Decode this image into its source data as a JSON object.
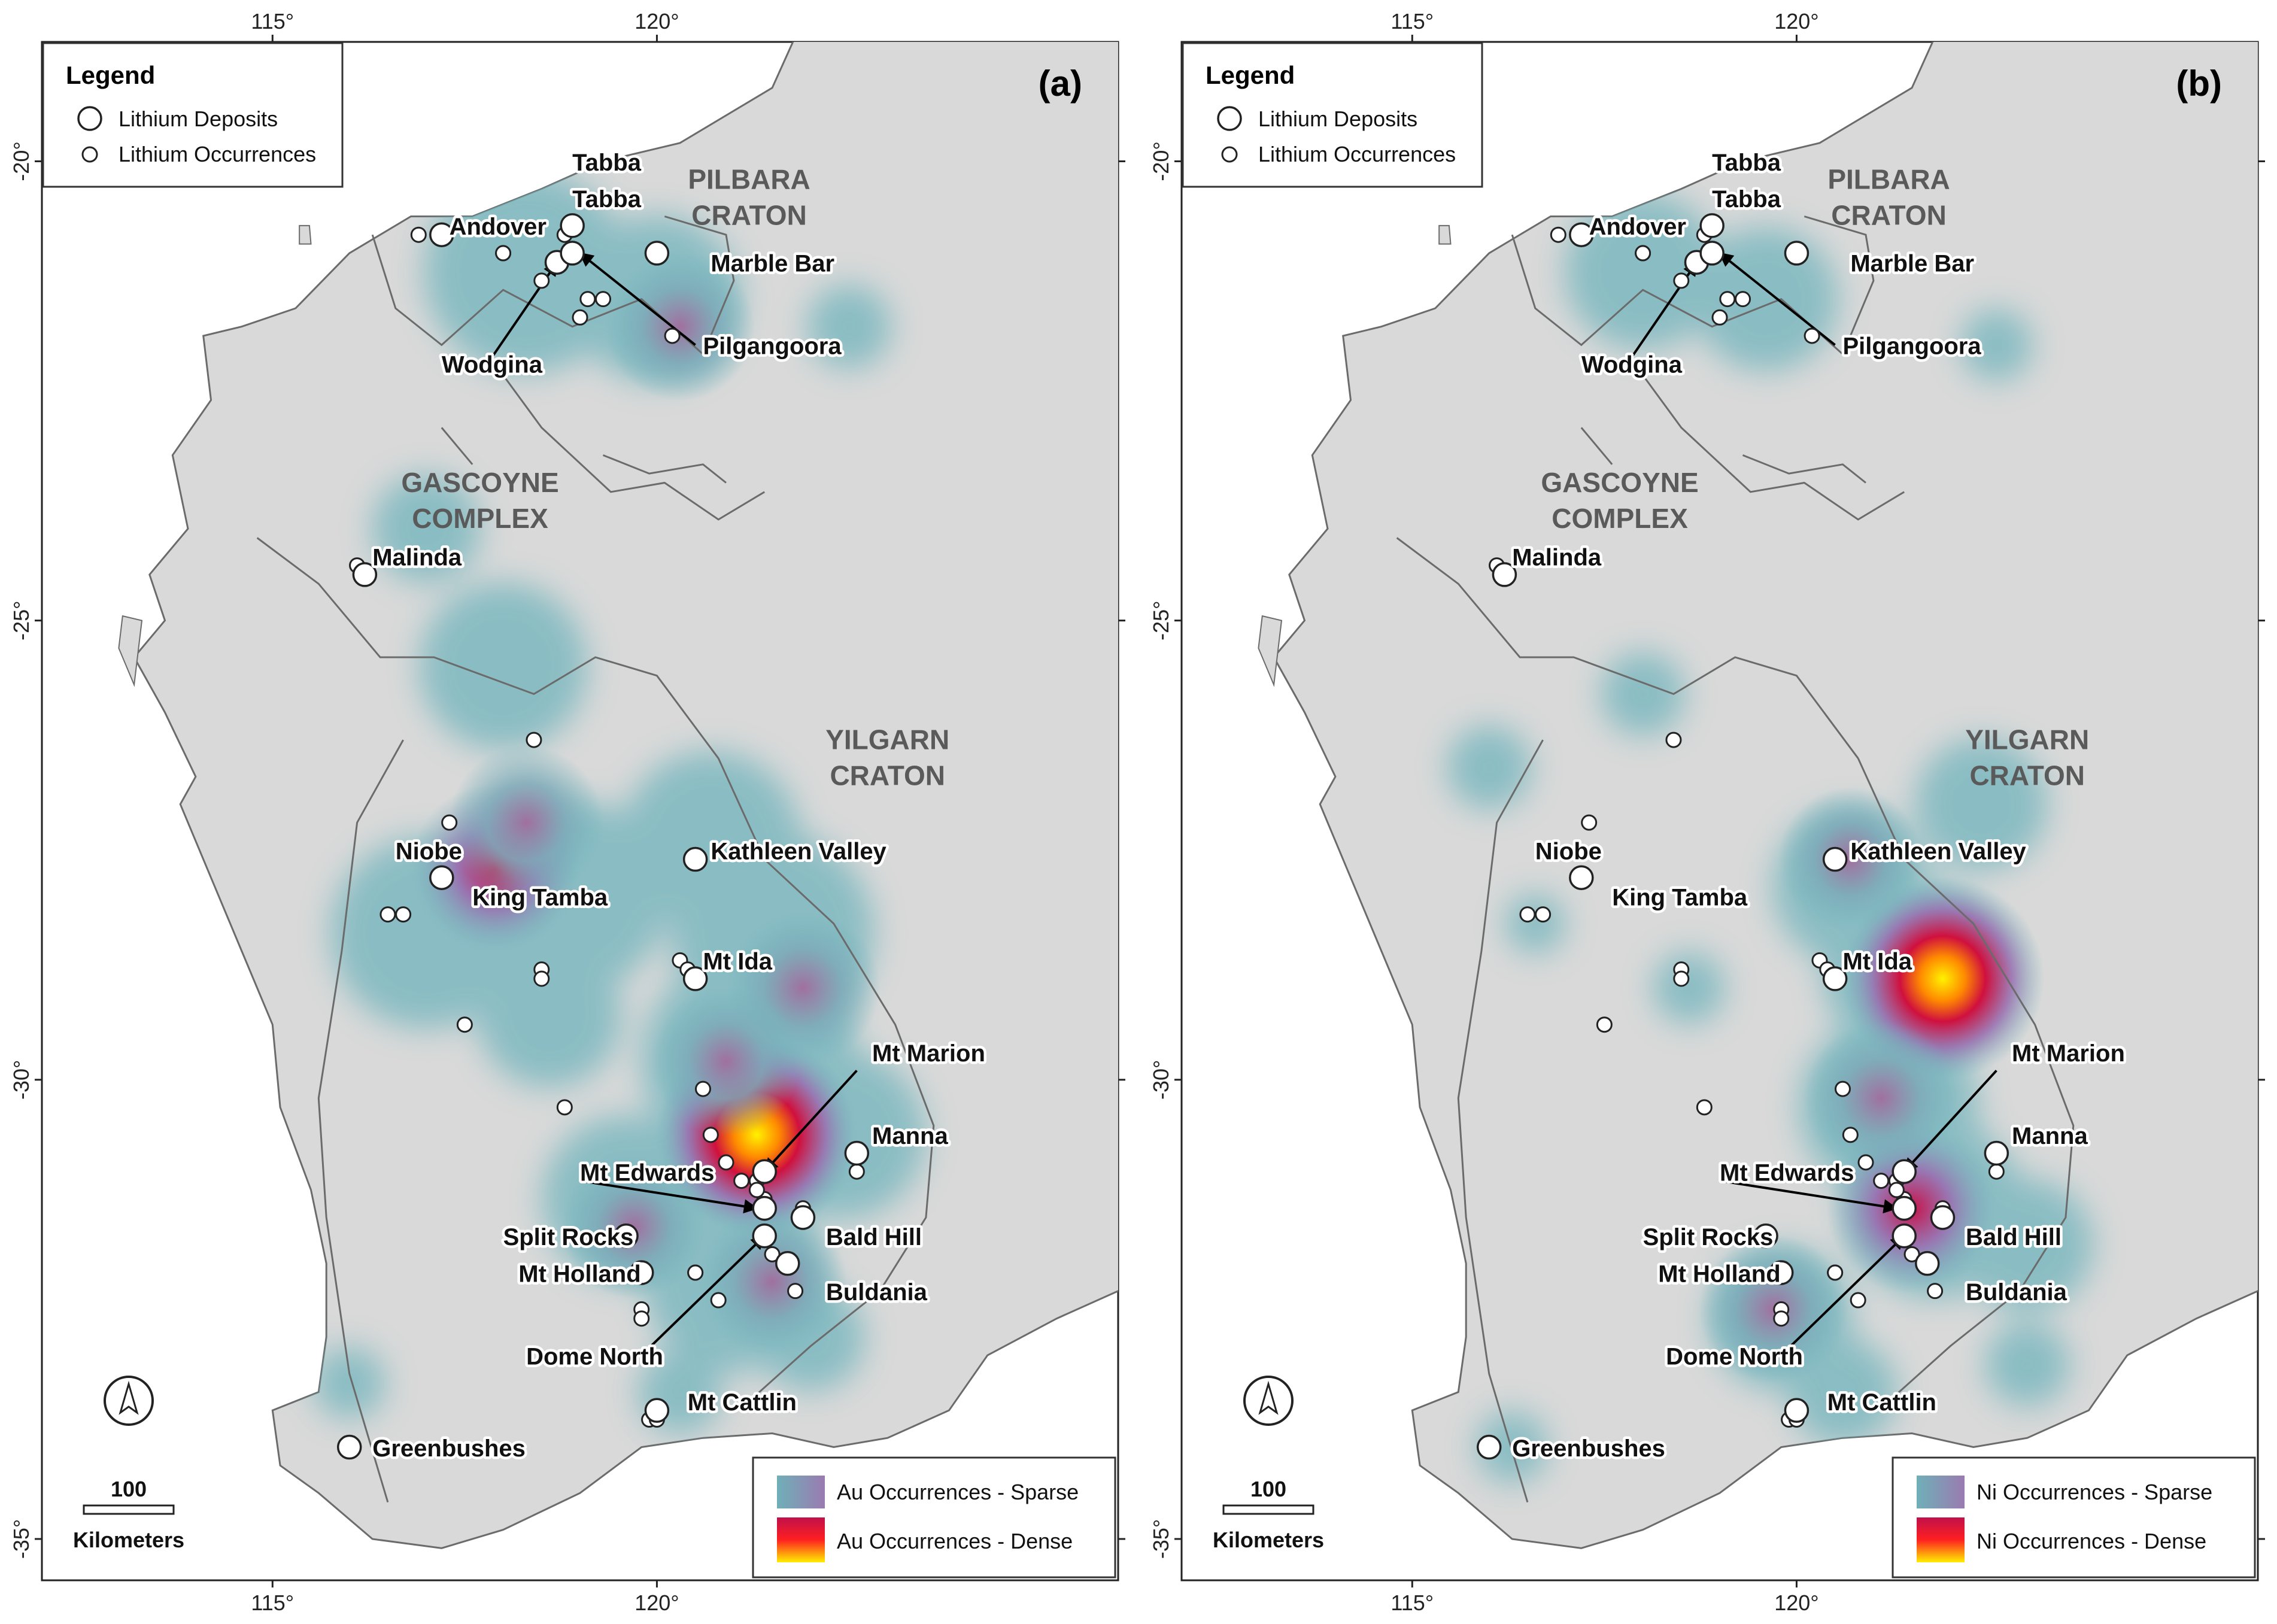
{
  "panels": [
    {
      "id": "a",
      "letter": "(a)",
      "element": "Au",
      "ramp": {
        "sparse": "Au Occurrences - Sparse",
        "dense": "Au Occurrences - Dense",
        "colors_sparse": [
          "#6fb0b8",
          "#9a7bb0"
        ],
        "colors_dense": [
          "#c0104a",
          "#ff2020",
          "#ffee00"
        ]
      },
      "hotspots": [
        {
          "lon": 121.3,
          "lat": -30.6,
          "level": 1.0
        },
        {
          "lon": 121.9,
          "lat": -29.0,
          "level": 0.55
        },
        {
          "lon": 117.9,
          "lat": -27.7,
          "level": 0.7
        },
        {
          "lon": 118.3,
          "lat": -27.2,
          "level": 0.55
        },
        {
          "lon": 120.3,
          "lat": -21.8,
          "level": 0.5
        },
        {
          "lon": 119.7,
          "lat": -31.6,
          "level": 0.45
        },
        {
          "lon": 121.5,
          "lat": -32.2,
          "level": 0.5
        },
        {
          "lon": 120.9,
          "lat": -29.8,
          "level": 0.5
        }
      ]
    },
    {
      "id": "b",
      "letter": "(b)",
      "element": "Ni",
      "ramp": {
        "sparse": "Ni Occurrences - Sparse",
        "dense": "Ni Occurrences - Dense",
        "colors_sparse": [
          "#6fb0b8",
          "#9a7bb0"
        ],
        "colors_dense": [
          "#c0104a",
          "#ff2020",
          "#ffee00"
        ]
      },
      "hotspots": [
        {
          "lon": 121.9,
          "lat": -28.9,
          "level": 1.0
        },
        {
          "lon": 121.5,
          "lat": -31.4,
          "level": 0.7
        },
        {
          "lon": 121.1,
          "lat": -30.2,
          "level": 0.55
        },
        {
          "lon": 119.7,
          "lat": -32.5,
          "level": 0.5
        },
        {
          "lon": 120.7,
          "lat": -27.6,
          "level": 0.45
        }
      ]
    }
  ],
  "legend": {
    "title": "Legend",
    "deposits_label": "Lithium Deposits",
    "occurrences_label": "Lithium Occurrences"
  },
  "scale_bar": {
    "value": "100",
    "unit": "Kilometers"
  },
  "north_arrow": "north-arrow",
  "axes": {
    "lon_ticks": [
      "115°",
      "120°"
    ],
    "lat_ticks": [
      "-20°",
      "-25°",
      "-30°",
      "-35°"
    ]
  },
  "regions": [
    {
      "line1": "PILBARA",
      "line2": "CRATON",
      "lon": 121.2,
      "lat": -20.3
    },
    {
      "line1": "GASCOYNE",
      "line2": "COMPLEX",
      "lon": 117.7,
      "lat": -23.6
    },
    {
      "line1": "YILGARN",
      "line2": "CRATON",
      "lon": 123.0,
      "lat": -26.4
    }
  ],
  "places": [
    {
      "name": "Andover",
      "lon": 117.3,
      "lat": -20.8
    },
    {
      "name": "Tabba",
      "lon": 118.9,
      "lat": -20.1
    },
    {
      "name": "Tabba",
      "lon": 118.9,
      "lat": -20.5
    },
    {
      "name": "Marble Bar",
      "lon": 120.7,
      "lat": -21.2
    },
    {
      "name": "Wodgina",
      "lon": 117.2,
      "lat": -22.3
    },
    {
      "name": "Pilgangoora",
      "lon": 120.6,
      "lat": -22.1
    },
    {
      "name": "Malinda",
      "lon": 116.3,
      "lat": -24.4
    },
    {
      "name": "Kathleen Valley",
      "lon": 120.7,
      "lat": -27.6
    },
    {
      "name": "Niobe",
      "lon": 116.6,
      "lat": -27.6
    },
    {
      "name": "King Tamba",
      "lon": 117.6,
      "lat": -28.1
    },
    {
      "name": "Mt Ida",
      "lon": 120.6,
      "lat": -28.8
    },
    {
      "name": "Mt Marion",
      "lon": 122.8,
      "lat": -29.8
    },
    {
      "name": "Manna",
      "lon": 122.8,
      "lat": -30.7
    },
    {
      "name": "Mt Edwards",
      "lon": 119.0,
      "lat": -31.1
    },
    {
      "name": "Split Rocks",
      "lon": 118.0,
      "lat": -31.8
    },
    {
      "name": "Bald Hill",
      "lon": 122.2,
      "lat": -31.8
    },
    {
      "name": "Mt Holland",
      "lon": 118.2,
      "lat": -32.2
    },
    {
      "name": "Buldania",
      "lon": 122.2,
      "lat": -32.4
    },
    {
      "name": "Dome North",
      "lon": 118.3,
      "lat": -33.1
    },
    {
      "name": "Mt Cattlin",
      "lon": 120.4,
      "lat": -33.6
    },
    {
      "name": "Greenbushes",
      "lon": 116.3,
      "lat": -34.1
    }
  ],
  "arrows": [
    {
      "from_lon": 117.8,
      "from_lat": -22.2,
      "to_lon": 118.7,
      "to_lat": -21.1
    },
    {
      "from_lon": 120.5,
      "from_lat": -22.0,
      "to_lon": 119.0,
      "to_lat": -21.0
    },
    {
      "from_lon": 122.6,
      "from_lat": -29.9,
      "to_lon": 121.4,
      "to_lat": -31.0
    },
    {
      "from_lon": 119.0,
      "from_lat": -31.1,
      "to_lon": 121.3,
      "to_lat": -31.4
    },
    {
      "from_lon": 119.8,
      "from_lat": -33.0,
      "to_lon": 121.4,
      "to_lat": -31.7
    }
  ],
  "deposits": [
    {
      "lon": 117.2,
      "lat": -20.8
    },
    {
      "lon": 118.9,
      "lat": -20.7
    },
    {
      "lon": 118.7,
      "lat": -21.1
    },
    {
      "lon": 118.9,
      "lat": -21.0
    },
    {
      "lon": 120.0,
      "lat": -21.0
    },
    {
      "lon": 116.2,
      "lat": -24.5
    },
    {
      "lon": 117.2,
      "lat": -27.8
    },
    {
      "lon": 120.5,
      "lat": -27.6
    },
    {
      "lon": 120.5,
      "lat": -28.9
    },
    {
      "lon": 121.4,
      "lat": -31.0
    },
    {
      "lon": 122.6,
      "lat": -30.8
    },
    {
      "lon": 121.4,
      "lat": -31.4
    },
    {
      "lon": 121.4,
      "lat": -31.7
    },
    {
      "lon": 119.6,
      "lat": -31.7
    },
    {
      "lon": 121.9,
      "lat": -31.5
    },
    {
      "lon": 119.8,
      "lat": -32.1
    },
    {
      "lon": 121.7,
      "lat": -32.0
    },
    {
      "lon": 120.0,
      "lat": -33.6
    },
    {
      "lon": 116.0,
      "lat": -34.0
    }
  ],
  "occurrences": [
    {
      "lon": 116.9,
      "lat": -20.8
    },
    {
      "lon": 118.8,
      "lat": -20.8
    },
    {
      "lon": 118.0,
      "lat": -21.0
    },
    {
      "lon": 118.0,
      "lat": -21.0
    },
    {
      "lon": 118.5,
      "lat": -21.3
    },
    {
      "lon": 119.1,
      "lat": -21.5
    },
    {
      "lon": 119.3,
      "lat": -21.5
    },
    {
      "lon": 119.0,
      "lat": -21.7
    },
    {
      "lon": 120.2,
      "lat": -21.9
    },
    {
      "lon": 116.1,
      "lat": -24.4
    },
    {
      "lon": 118.4,
      "lat": -26.3
    },
    {
      "lon": 117.3,
      "lat": -27.2
    },
    {
      "lon": 116.5,
      "lat": -28.2
    },
    {
      "lon": 116.7,
      "lat": -28.2
    },
    {
      "lon": 118.5,
      "lat": -28.8
    },
    {
      "lon": 118.5,
      "lat": -28.9
    },
    {
      "lon": 120.3,
      "lat": -28.7
    },
    {
      "lon": 120.4,
      "lat": -28.8
    },
    {
      "lon": 117.5,
      "lat": -29.4
    },
    {
      "lon": 118.8,
      "lat": -30.3
    },
    {
      "lon": 120.6,
      "lat": -30.1
    },
    {
      "lon": 120.7,
      "lat": -30.6
    },
    {
      "lon": 120.9,
      "lat": -30.9
    },
    {
      "lon": 121.1,
      "lat": -31.1
    },
    {
      "lon": 121.3,
      "lat": -31.1
    },
    {
      "lon": 121.4,
      "lat": -31.3
    },
    {
      "lon": 121.3,
      "lat": -31.2
    },
    {
      "lon": 121.5,
      "lat": -31.9
    },
    {
      "lon": 121.9,
      "lat": -31.4
    },
    {
      "lon": 122.6,
      "lat": -31.0
    },
    {
      "lon": 120.5,
      "lat": -32.1
    },
    {
      "lon": 120.5,
      "lat": -32.1
    },
    {
      "lon": 120.8,
      "lat": -32.4
    },
    {
      "lon": 121.8,
      "lat": -32.3
    },
    {
      "lon": 119.8,
      "lat": -32.5
    },
    {
      "lon": 119.8,
      "lat": -32.6
    },
    {
      "lon": 119.9,
      "lat": -33.7
    },
    {
      "lon": 120.0,
      "lat": -33.7
    }
  ]
}
